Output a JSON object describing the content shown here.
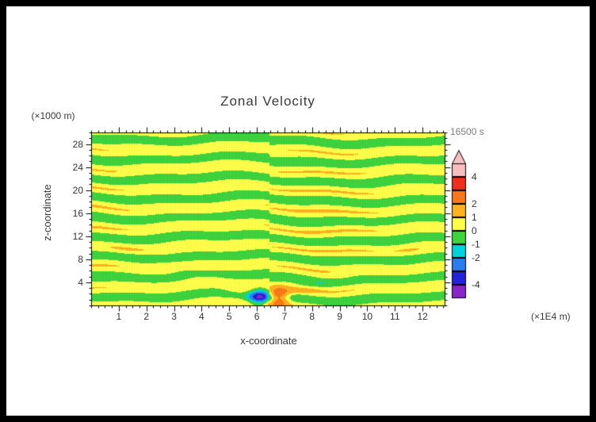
{
  "figure": {
    "background": "#ffffff",
    "border_color": "#000000",
    "text_color": "#3a3a3a",
    "timestamp_color": "#7d7d7d"
  },
  "chart_data": {
    "type": "heatmap",
    "title": "Zonal Velocity",
    "annotation": "16500 s",
    "xlabel": "x-coordinate",
    "ylabel": "z-coordinate",
    "x_units_label": "(×1E4 m)",
    "y_units_label": "(×1000 m)",
    "xlim": [
      0,
      12.8
    ],
    "ylim": [
      0,
      30
    ],
    "x_major_ticks": [
      1,
      2,
      3,
      4,
      5,
      6,
      7,
      8,
      9,
      10,
      11,
      12
    ],
    "x_minor_step": 0.25,
    "y_major_ticks": [
      4,
      8,
      12,
      16,
      20,
      24,
      28
    ],
    "y_minor_step": 1,
    "contour_levels": [
      -5,
      -4,
      -3,
      -2,
      -1,
      0,
      1,
      2,
      3,
      4,
      5
    ],
    "colors_low_to_high": [
      "#8926c9",
      "#2323d9",
      "#2b7bf2",
      "#00d2dc",
      "#3ed43e",
      "#ffff4a",
      "#ffb21e",
      "#fa7819",
      "#ef2e1b",
      "#f6bfbf"
    ],
    "overflow_arrow_color": "#f6bfbf",
    "colorbar_tick_values": [
      4,
      2,
      1,
      0,
      -1,
      -2,
      -4
    ],
    "colorbar_tick_labels": [
      "4",
      "2",
      "1",
      "0",
      "-1",
      "-2",
      "-4"
    ],
    "legend_position": "right",
    "grid": false,
    "field_model": {
      "description": "Zonal velocity field of internal gravity waves: alternating horizontal yellow/green bands of roughly ±0.9 filling the whole domain, with a vertical phase seam at mid-domain and a localized wave source near x=6.45 (×1E4 m), z=1.4 (×1000 m) where values reach about ±3.5 (cyan/blue lobe left of source, orange/red lobe right of source)",
      "band_vertical_wavelength": 3.4,
      "band_amplitude": 0.74,
      "mean_offset": 0.15,
      "source_x": 6.45,
      "source_z": 1.4,
      "source_amplitude": 5.2
    }
  }
}
